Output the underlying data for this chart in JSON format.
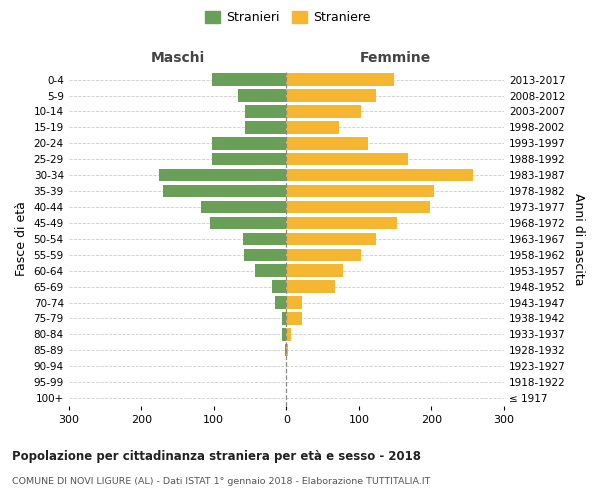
{
  "age_groups": [
    "100+",
    "95-99",
    "90-94",
    "85-89",
    "80-84",
    "75-79",
    "70-74",
    "65-69",
    "60-64",
    "55-59",
    "50-54",
    "45-49",
    "40-44",
    "35-39",
    "30-34",
    "25-29",
    "20-24",
    "15-19",
    "10-14",
    "5-9",
    "0-4"
  ],
  "birth_years": [
    "≤ 1917",
    "1918-1922",
    "1923-1927",
    "1928-1932",
    "1933-1937",
    "1938-1942",
    "1943-1947",
    "1948-1952",
    "1953-1957",
    "1958-1962",
    "1963-1967",
    "1968-1972",
    "1973-1977",
    "1978-1982",
    "1983-1987",
    "1988-1992",
    "1993-1997",
    "1998-2002",
    "2003-2007",
    "2008-2012",
    "2013-2017"
  ],
  "males": [
    0,
    0,
    0,
    2,
    6,
    6,
    15,
    20,
    43,
    58,
    60,
    105,
    118,
    170,
    175,
    103,
    103,
    57,
    57,
    67,
    103
  ],
  "females": [
    0,
    0,
    0,
    2,
    6,
    22,
    22,
    67,
    78,
    103,
    123,
    153,
    198,
    203,
    258,
    168,
    113,
    72,
    103,
    123,
    148
  ],
  "male_color": "#6a9f58",
  "female_color": "#f5b731",
  "title": "Popolazione per cittadinanza straniera per età e sesso - 2018",
  "subtitle": "COMUNE DI NOVI LIGURE (AL) - Dati ISTAT 1° gennaio 2018 - Elaborazione TUTTITALIA.IT",
  "ylabel_left": "Fasce di età",
  "ylabel_right": "Anni di nascita",
  "header_left": "Maschi",
  "header_right": "Femmine",
  "xlim": 300,
  "legend_stranieri": "Stranieri",
  "legend_straniere": "Straniere",
  "bg_color": "#ffffff",
  "grid_color": "#cccccc",
  "xticks": [
    -300,
    -200,
    -100,
    0,
    100,
    200,
    300
  ]
}
